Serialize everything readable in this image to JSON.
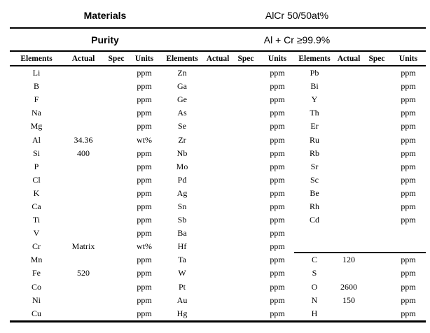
{
  "header": {
    "materials_label": "Materials",
    "materials_value": "AlCr 50/50at%",
    "purity_label": "Purity",
    "purity_value": "Al + Cr ≥99.9%"
  },
  "columns": [
    "Elements",
    "Actual",
    "Spec",
    "Units"
  ],
  "column_groups": 3,
  "g3_divider_after_row_index": 13,
  "rows": [
    [
      "Li",
      "",
      "",
      "ppm",
      "Zn",
      "",
      "",
      "ppm",
      "Pb",
      "",
      "",
      "ppm"
    ],
    [
      "B",
      "",
      "",
      "ppm",
      "Ga",
      "",
      "",
      "ppm",
      "Bi",
      "",
      "",
      "ppm"
    ],
    [
      "F",
      "",
      "",
      "ppm",
      "Ge",
      "",
      "",
      "ppm",
      "Y",
      "",
      "",
      "ppm"
    ],
    [
      "Na",
      "",
      "",
      "ppm",
      "As",
      "",
      "",
      "ppm",
      "Th",
      "",
      "",
      "ppm"
    ],
    [
      "Mg",
      "",
      "",
      "ppm",
      "Se",
      "",
      "",
      "ppm",
      "Er",
      "",
      "",
      "ppm"
    ],
    [
      "Al",
      "34.36",
      "",
      "wt%",
      "Zr",
      "",
      "",
      "ppm",
      "Ru",
      "",
      "",
      "ppm"
    ],
    [
      "Si",
      "400",
      "",
      "ppm",
      "Nb",
      "",
      "",
      "ppm",
      "Rb",
      "",
      "",
      "ppm"
    ],
    [
      "P",
      "",
      "",
      "ppm",
      "Mo",
      "",
      "",
      "ppm",
      "Sr",
      "",
      "",
      "ppm"
    ],
    [
      "Cl",
      "",
      "",
      "ppm",
      "Pd",
      "",
      "",
      "ppm",
      "Sc",
      "",
      "",
      "ppm"
    ],
    [
      "K",
      "",
      "",
      "ppm",
      "Ag",
      "",
      "",
      "ppm",
      "Be",
      "",
      "",
      "ppm"
    ],
    [
      "Ca",
      "",
      "",
      "ppm",
      "Sn",
      "",
      "",
      "ppm",
      "Rh",
      "",
      "",
      "ppm"
    ],
    [
      "Ti",
      "",
      "",
      "ppm",
      "Sb",
      "",
      "",
      "ppm",
      "Cd",
      "",
      "",
      "ppm"
    ],
    [
      "V",
      "",
      "",
      "ppm",
      "Ba",
      "",
      "",
      "ppm",
      "",
      "",
      "",
      ""
    ],
    [
      "Cr",
      "Matrix",
      "",
      "wt%",
      "Hf",
      "",
      "",
      "ppm",
      "",
      "",
      "",
      ""
    ],
    [
      "Mn",
      "",
      "",
      "ppm",
      "Ta",
      "",
      "",
      "ppm",
      "C",
      "120",
      "",
      "ppm"
    ],
    [
      "Fe",
      "520",
      "",
      "ppm",
      "W",
      "",
      "",
      "ppm",
      "S",
      "",
      "",
      "ppm"
    ],
    [
      "Co",
      "",
      "",
      "ppm",
      "Pt",
      "",
      "",
      "ppm",
      "O",
      "2600",
      "",
      "ppm"
    ],
    [
      "Ni",
      "",
      "",
      "ppm",
      "Au",
      "",
      "",
      "ppm",
      "N",
      "150",
      "",
      "ppm"
    ],
    [
      "Cu",
      "",
      "",
      "ppm",
      "Hg",
      "",
      "",
      "ppm",
      "H",
      "",
      "",
      "ppm"
    ]
  ],
  "colors": {
    "text": "#000000",
    "background": "#ffffff",
    "rule": "#000000"
  }
}
